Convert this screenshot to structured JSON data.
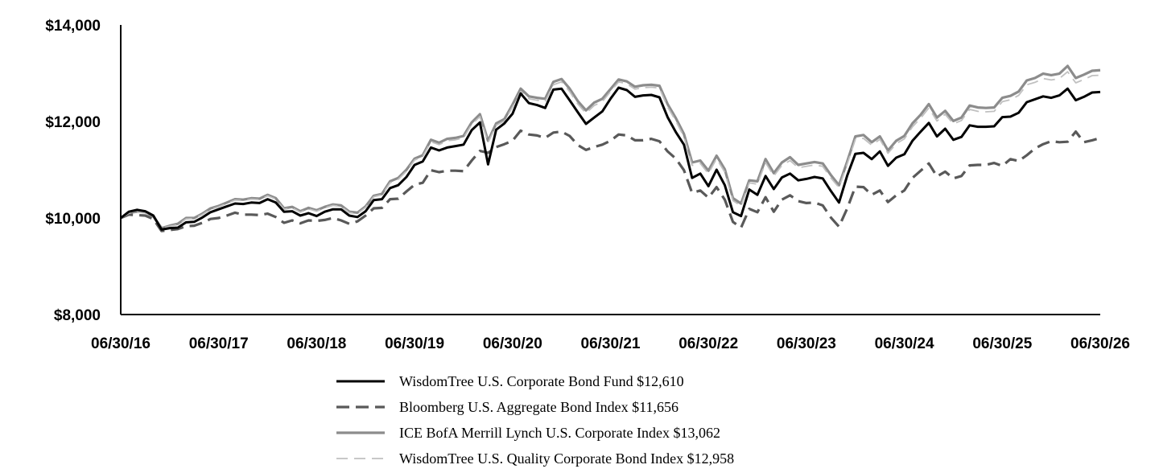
{
  "chart_data": {
    "type": "line",
    "title": "",
    "xlabel": "",
    "ylabel": "",
    "ylim": [
      8000,
      14000
    ],
    "y_ticks": [
      "$8,000",
      "$10,000",
      "$12,000",
      "$14,000"
    ],
    "y_tick_values": [
      8000,
      10000,
      12000,
      14000
    ],
    "x_ticks": [
      "06/30/16",
      "06/30/17",
      "06/30/18",
      "06/30/19",
      "06/30/20",
      "06/30/21",
      "06/30/22",
      "06/30/23",
      "06/30/24",
      "06/30/25",
      "06/30/26"
    ],
    "x_tick_years": [
      2016,
      2017,
      2018,
      2019,
      2020,
      2021,
      2022,
      2023,
      2024,
      2025,
      2026
    ],
    "xlim": [
      2016,
      2026
    ],
    "grid": false,
    "legend_position": "bottom-center",
    "series": [
      {
        "name": "WisdomTree U.S. Corporate Bond Fund $12,610",
        "color": "#000000",
        "style": "solid",
        "x": [
          2016.0,
          2016.083,
          2016.167,
          2016.25,
          2016.333,
          2016.417,
          2016.5,
          2016.583,
          2016.667,
          2016.75,
          2016.833,
          2016.917,
          2017.0,
          2017.083,
          2017.167,
          2017.25,
          2017.333,
          2017.417,
          2017.5,
          2017.583,
          2017.667,
          2017.75,
          2017.833,
          2017.917,
          2018.0,
          2018.083,
          2018.167,
          2018.25,
          2018.333,
          2018.417,
          2018.5,
          2018.583,
          2018.667,
          2018.75,
          2018.833,
          2018.917,
          2019.0,
          2019.083,
          2019.167,
          2019.25,
          2019.333,
          2019.417,
          2019.5,
          2019.583,
          2019.667,
          2019.75,
          2019.833,
          2019.917,
          2020.0,
          2020.083,
          2020.167,
          2020.25,
          2020.333,
          2020.417,
          2020.5,
          2020.583,
          2020.667,
          2020.75,
          2020.833,
          2020.917,
          2021.0,
          2021.083,
          2021.167,
          2021.25,
          2021.333,
          2021.417,
          2021.5,
          2021.583,
          2021.667,
          2021.75,
          2021.833,
          2021.917,
          2022.0,
          2022.083,
          2022.167,
          2022.25,
          2022.333,
          2022.417,
          2022.5,
          2022.583,
          2022.667,
          2022.75,
          2022.833,
          2022.917,
          2023.0,
          2023.083,
          2023.167,
          2023.25,
          2023.333,
          2023.417,
          2023.5,
          2023.583,
          2023.667,
          2023.75,
          2023.833,
          2023.917,
          2024.0,
          2024.083,
          2024.167,
          2024.25,
          2024.333,
          2024.417,
          2024.5,
          2024.583,
          2024.667,
          2024.75,
          2024.833,
          2024.917,
          2025.0,
          2025.083,
          2025.167,
          2025.25,
          2025.333,
          2025.417,
          2025.5,
          2025.583,
          2025.667,
          2025.75,
          2025.833,
          2025.917,
          2026.0
        ],
        "values": [
          10000,
          10130,
          10170,
          10140,
          10050,
          9760,
          9790,
          9800,
          9910,
          9920,
          10010,
          10120,
          10180,
          10240,
          10300,
          10290,
          10320,
          10310,
          10390,
          10320,
          10130,
          10140,
          10050,
          10100,
          10040,
          10130,
          10180,
          10180,
          10050,
          10020,
          10140,
          10370,
          10390,
          10620,
          10680,
          10850,
          11100,
          11170,
          11460,
          11400,
          11460,
          11490,
          11520,
          11820,
          11980,
          11110,
          11830,
          11960,
          12160,
          12580,
          12380,
          12340,
          12280,
          12660,
          12680,
          12440,
          12190,
          11950,
          12080,
          12210,
          12470,
          12700,
          12650,
          12510,
          12540,
          12550,
          12500,
          12090,
          11780,
          11520,
          10830,
          10920,
          10660,
          11000,
          10680,
          10120,
          10040,
          10590,
          10480,
          10870,
          10600,
          10840,
          10920,
          10780,
          10810,
          10850,
          10820,
          10560,
          10320,
          10880,
          11330,
          11350,
          11220,
          11380,
          11080,
          11250,
          11320,
          11600,
          11790,
          11970,
          11690,
          11850,
          11620,
          11680,
          11920,
          11890,
          11890,
          11900,
          12090,
          12100,
          12180,
          12400,
          12460,
          12520,
          12490,
          12540,
          12680,
          12440,
          12510,
          12600,
          12610
        ]
      },
      {
        "name": "Bloomberg U.S. Aggregate Bond Index $11,656",
        "color": "#595959",
        "style": "dashed",
        "x": [
          2016.0,
          2016.083,
          2016.167,
          2016.25,
          2016.333,
          2016.417,
          2016.5,
          2016.583,
          2016.667,
          2016.75,
          2016.833,
          2016.917,
          2017.0,
          2017.083,
          2017.167,
          2017.25,
          2017.333,
          2017.417,
          2017.5,
          2017.583,
          2017.667,
          2017.75,
          2017.833,
          2017.917,
          2018.0,
          2018.083,
          2018.167,
          2018.25,
          2018.333,
          2018.417,
          2018.5,
          2018.583,
          2018.667,
          2018.75,
          2018.833,
          2018.917,
          2019.0,
          2019.083,
          2019.167,
          2019.25,
          2019.333,
          2019.417,
          2019.5,
          2019.583,
          2019.667,
          2019.75,
          2019.833,
          2019.917,
          2020.0,
          2020.083,
          2020.167,
          2020.25,
          2020.333,
          2020.417,
          2020.5,
          2020.583,
          2020.667,
          2020.75,
          2020.833,
          2020.917,
          2021.0,
          2021.083,
          2021.167,
          2021.25,
          2021.333,
          2021.417,
          2021.5,
          2021.583,
          2021.667,
          2021.75,
          2021.833,
          2021.917,
          2022.0,
          2022.083,
          2022.167,
          2022.25,
          2022.333,
          2022.417,
          2022.5,
          2022.583,
          2022.667,
          2022.75,
          2022.833,
          2022.917,
          2023.0,
          2023.083,
          2023.167,
          2023.25,
          2023.333,
          2023.417,
          2023.5,
          2023.583,
          2023.667,
          2023.75,
          2023.833,
          2023.917,
          2024.0,
          2024.083,
          2024.167,
          2024.25,
          2024.333,
          2024.417,
          2024.5,
          2024.583,
          2024.667,
          2024.75,
          2024.833,
          2024.917,
          2025.0,
          2025.083,
          2025.167,
          2025.25,
          2025.333,
          2025.417,
          2025.5,
          2025.583,
          2025.667,
          2025.75,
          2025.833,
          2025.917,
          2026.0
        ],
        "values": [
          10000,
          10070,
          10060,
          10050,
          9980,
          9730,
          9750,
          9770,
          9830,
          9840,
          9900,
          9980,
          10000,
          10050,
          10110,
          10070,
          10070,
          10060,
          10090,
          10020,
          9900,
          9950,
          9890,
          9950,
          9940,
          9960,
          10000,
          9950,
          9880,
          9930,
          10050,
          10200,
          10210,
          10390,
          10400,
          10550,
          10690,
          10730,
          10990,
          10950,
          10980,
          10980,
          10970,
          11190,
          11390,
          11350,
          11470,
          11530,
          11600,
          11810,
          11730,
          11710,
          11660,
          11770,
          11790,
          11700,
          11510,
          11410,
          11470,
          11520,
          11600,
          11730,
          11710,
          11610,
          11610,
          11640,
          11590,
          11380,
          11230,
          10990,
          10520,
          10570,
          10420,
          10640,
          10380,
          9920,
          9800,
          10190,
          10120,
          10430,
          10130,
          10380,
          10470,
          10350,
          10310,
          10320,
          10260,
          10010,
          9820,
          10200,
          10650,
          10640,
          10480,
          10570,
          10330,
          10470,
          10570,
          10830,
          10980,
          11130,
          10860,
          10960,
          10820,
          10870,
          11090,
          11100,
          11100,
          11140,
          11080,
          11220,
          11180,
          11300,
          11440,
          11530,
          11590,
          11570,
          11580,
          11790,
          11570,
          11610,
          11656
        ]
      },
      {
        "name": "ICE BofA Merrill Lynch U.S. Corporate Index $13,062",
        "color": "#8c8c8c",
        "style": "solid",
        "x": [
          2016.0,
          2016.083,
          2016.167,
          2016.25,
          2016.333,
          2016.417,
          2016.5,
          2016.583,
          2016.667,
          2016.75,
          2016.833,
          2016.917,
          2017.0,
          2017.083,
          2017.167,
          2017.25,
          2017.333,
          2017.417,
          2017.5,
          2017.583,
          2017.667,
          2017.75,
          2017.833,
          2017.917,
          2018.0,
          2018.083,
          2018.167,
          2018.25,
          2018.333,
          2018.417,
          2018.5,
          2018.583,
          2018.667,
          2018.75,
          2018.833,
          2018.917,
          2019.0,
          2019.083,
          2019.167,
          2019.25,
          2019.333,
          2019.417,
          2019.5,
          2019.583,
          2019.667,
          2019.75,
          2019.833,
          2019.917,
          2020.0,
          2020.083,
          2020.167,
          2020.25,
          2020.333,
          2020.417,
          2020.5,
          2020.583,
          2020.667,
          2020.75,
          2020.833,
          2020.917,
          2021.0,
          2021.083,
          2021.167,
          2021.25,
          2021.333,
          2021.417,
          2021.5,
          2021.583,
          2021.667,
          2021.75,
          2021.833,
          2021.917,
          2022.0,
          2022.083,
          2022.167,
          2022.25,
          2022.333,
          2022.417,
          2022.5,
          2022.583,
          2022.667,
          2022.75,
          2022.833,
          2022.917,
          2023.0,
          2023.083,
          2023.167,
          2023.25,
          2023.333,
          2023.417,
          2023.5,
          2023.583,
          2023.667,
          2023.75,
          2023.833,
          2023.917,
          2024.0,
          2024.083,
          2024.167,
          2024.25,
          2024.333,
          2024.417,
          2024.5,
          2024.583,
          2024.667,
          2024.75,
          2024.833,
          2024.917,
          2025.0,
          2025.083,
          2025.167,
          2025.25,
          2025.333,
          2025.417,
          2025.5,
          2025.583,
          2025.667,
          2025.75,
          2025.833,
          2025.917,
          2026.0
        ],
        "values": [
          10000,
          10110,
          10130,
          10120,
          10030,
          9790,
          9840,
          9880,
          10000,
          10000,
          10090,
          10200,
          10250,
          10320,
          10390,
          10380,
          10410,
          10400,
          10480,
          10410,
          10200,
          10230,
          10140,
          10210,
          10160,
          10230,
          10280,
          10260,
          10130,
          10110,
          10240,
          10460,
          10500,
          10760,
          10830,
          11000,
          11230,
          11300,
          11620,
          11560,
          11640,
          11660,
          11700,
          11980,
          12150,
          11600,
          11960,
          12050,
          12350,
          12680,
          12520,
          12490,
          12470,
          12820,
          12880,
          12680,
          12420,
          12230,
          12390,
          12470,
          12670,
          12870,
          12830,
          12720,
          12750,
          12760,
          12740,
          12360,
          12070,
          11740,
          11150,
          11190,
          10980,
          11290,
          11010,
          10410,
          10300,
          10780,
          10760,
          11220,
          10930,
          11150,
          11260,
          11100,
          11130,
          11160,
          11130,
          10890,
          10680,
          11170,
          11690,
          11720,
          11570,
          11690,
          11400,
          11600,
          11700,
          11960,
          12140,
          12360,
          12080,
          12220,
          12010,
          12080,
          12330,
          12290,
          12280,
          12290,
          12490,
          12530,
          12620,
          12850,
          12900,
          12990,
          12960,
          12990,
          13150,
          12900,
          12970,
          13050,
          13062
        ]
      },
      {
        "name": "WisdomTree U.S. Quality Corporate Bond Index $12,958",
        "color": "#c0c0c0",
        "style": "dashed",
        "x": [
          2016.0,
          2016.083,
          2016.167,
          2016.25,
          2016.333,
          2016.417,
          2016.5,
          2016.583,
          2016.667,
          2016.75,
          2016.833,
          2016.917,
          2017.0,
          2017.083,
          2017.167,
          2017.25,
          2017.333,
          2017.417,
          2017.5,
          2017.583,
          2017.667,
          2017.75,
          2017.833,
          2017.917,
          2018.0,
          2018.083,
          2018.167,
          2018.25,
          2018.333,
          2018.417,
          2018.5,
          2018.583,
          2018.667,
          2018.75,
          2018.833,
          2018.917,
          2019.0,
          2019.083,
          2019.167,
          2019.25,
          2019.333,
          2019.417,
          2019.5,
          2019.583,
          2019.667,
          2019.75,
          2019.833,
          2019.917,
          2020.0,
          2020.083,
          2020.167,
          2020.25,
          2020.333,
          2020.417,
          2020.5,
          2020.583,
          2020.667,
          2020.75,
          2020.833,
          2020.917,
          2021.0,
          2021.083,
          2021.167,
          2021.25,
          2021.333,
          2021.417,
          2021.5,
          2021.583,
          2021.667,
          2021.75,
          2021.833,
          2021.917,
          2022.0,
          2022.083,
          2022.167,
          2022.25,
          2022.333,
          2022.417,
          2022.5,
          2022.583,
          2022.667,
          2022.75,
          2022.833,
          2022.917,
          2023.0,
          2023.083,
          2023.167,
          2023.25,
          2023.333,
          2023.417,
          2023.5,
          2023.583,
          2023.667,
          2023.75,
          2023.833,
          2023.917,
          2024.0,
          2024.083,
          2024.167,
          2024.25,
          2024.333,
          2024.417,
          2024.5,
          2024.583,
          2024.667,
          2024.75,
          2024.833,
          2024.917,
          2025.0,
          2025.083,
          2025.167,
          2025.25,
          2025.333,
          2025.417,
          2025.5,
          2025.583,
          2025.667,
          2025.75,
          2025.833,
          2025.917,
          2026.0
        ],
        "values": [
          10000,
          10100,
          10120,
          10110,
          10020,
          9780,
          9830,
          9860,
          9980,
          9990,
          10070,
          10180,
          10230,
          10300,
          10370,
          10360,
          10390,
          10380,
          10460,
          10390,
          10180,
          10210,
          10120,
          10190,
          10140,
          10210,
          10260,
          10240,
          10110,
          10090,
          10220,
          10440,
          10480,
          10730,
          10800,
          10970,
          11200,
          11270,
          11580,
          11520,
          11600,
          11620,
          11660,
          11940,
          12100,
          11560,
          11920,
          12010,
          12300,
          12620,
          12470,
          12440,
          12410,
          12760,
          12820,
          12620,
          12360,
          12170,
          12330,
          12410,
          12620,
          12820,
          12780,
          12670,
          12700,
          12710,
          12690,
          12300,
          12010,
          11680,
          11090,
          11130,
          10920,
          11230,
          10950,
          10360,
          10250,
          10730,
          10700,
          11150,
          10870,
          11090,
          11190,
          11040,
          11070,
          11100,
          11070,
          10830,
          10630,
          11120,
          11630,
          11650,
          11510,
          11630,
          11340,
          11540,
          11640,
          11890,
          12070,
          12280,
          12010,
          12150,
          11950,
          12020,
          12250,
          12210,
          12200,
          12210,
          12410,
          12450,
          12540,
          12760,
          12810,
          12890,
          12860,
          12890,
          13030,
          12800,
          12870,
          12950,
          12958
        ]
      }
    ]
  }
}
